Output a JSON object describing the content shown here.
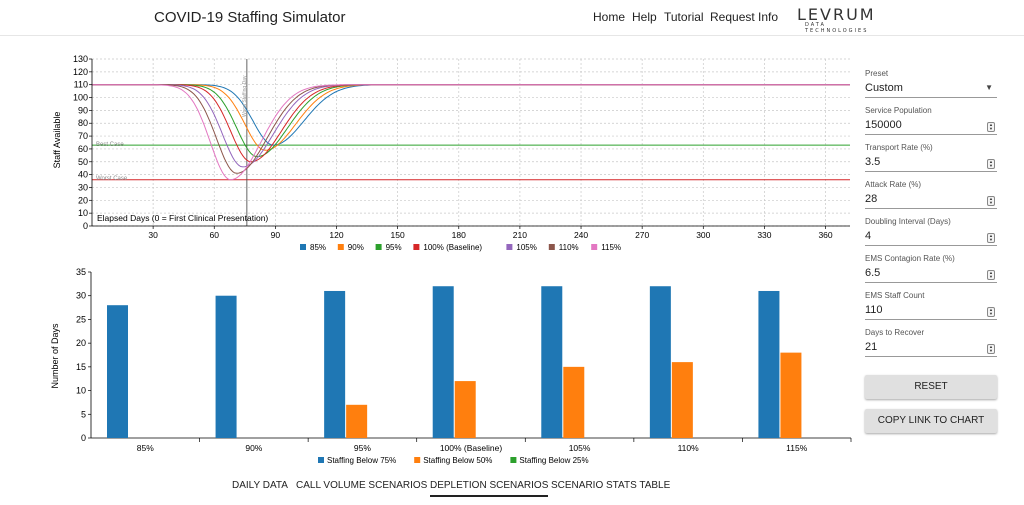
{
  "header": {
    "title": "COVID-19 Staffing Simulator",
    "nav": [
      "Home",
      "Help",
      "Tutorial",
      "Request Info"
    ],
    "logo_main": "LEVRUM",
    "logo_sub": "DATA TECHNOLOGIES"
  },
  "line_chart": {
    "ylabel": "Staff Available",
    "xlabel": "Elapsed Days (0 = First Clinical Presentation)",
    "x_ticks": [
      30,
      60,
      90,
      120,
      150,
      180,
      210,
      240,
      270,
      300,
      330,
      360
    ],
    "y_ticks": [
      0,
      10,
      20,
      30,
      40,
      50,
      60,
      70,
      80,
      90,
      100,
      110,
      120,
      130
    ],
    "best_case_label": "Best Case",
    "worst_case_label": "Worst Case",
    "worst_staffing_label": "Worst Staffing Day"
  },
  "bar_chart": {
    "ylabel": "Number of Days",
    "y_ticks": [
      0,
      5,
      10,
      15,
      20,
      25,
      30,
      35
    ]
  },
  "panel": {
    "preset_label": "Preset",
    "preset_value": "Custom",
    "fields": [
      {
        "label": "Service Population",
        "value": "150000"
      },
      {
        "label": "Transport Rate (%)",
        "value": "3.5"
      },
      {
        "label": "Attack Rate (%)",
        "value": "28"
      },
      {
        "label": "Doubling Interval (Days)",
        "value": "4"
      },
      {
        "label": "EMS Contagion Rate (%)",
        "value": "6.5"
      },
      {
        "label": "EMS Staff Count",
        "value": "110"
      },
      {
        "label": "Days to Recover",
        "value": "21"
      }
    ],
    "reset_label": "RESET",
    "copy_label": "COPY LINK TO CHART"
  },
  "tabs": [
    "DAILY DATA",
    "CALL VOLUME SCENARIOS",
    "DEPLETION SCENARIOS",
    "SCENARIO STATS TABLE"
  ],
  "chart_data": [
    {
      "type": "line",
      "ylabel": "Staff Available",
      "xlabel": "Elapsed Days (0 = First Clinical Presentation)",
      "xlim": [
        0,
        372
      ],
      "ylim": [
        0,
        130
      ],
      "grid": true,
      "legend_position": "bottom",
      "baseline_staff": 110,
      "reference_lines": [
        {
          "name": "Best Case",
          "y": 63,
          "color": "#2ca02c"
        },
        {
          "name": "Worst Case",
          "y": 36,
          "color": "#d62728"
        },
        {
          "name": "Worst Staffing Day",
          "x": 76,
          "color": "#555555",
          "orientation": "vertical"
        }
      ],
      "series": [
        {
          "name": "85%",
          "color": "#1f77b4",
          "min_day": 89,
          "min_staff": 63
        },
        {
          "name": "90%",
          "color": "#ff7f0e",
          "min_day": 85,
          "min_staff": 59
        },
        {
          "name": "95%",
          "color": "#2ca02c",
          "min_day": 81,
          "min_staff": 54
        },
        {
          "name": "100% (Baseline)",
          "color": "#d62728",
          "min_day": 78,
          "min_staff": 50
        },
        {
          "name": "105%",
          "color": "#9467bd",
          "min_day": 74,
          "min_staff": 46
        },
        {
          "name": "110%",
          "color": "#8c564b",
          "min_day": 71,
          "min_staff": 41
        },
        {
          "name": "115%",
          "color": "#e377c2",
          "min_day": 68,
          "min_staff": 36
        }
      ]
    },
    {
      "type": "bar",
      "ylabel": "Number of Days",
      "ylim": [
        0,
        35
      ],
      "categories": [
        "85%",
        "90%",
        "95%",
        "100% (Baseline)",
        "105%",
        "110%",
        "115%"
      ],
      "legend_position": "bottom",
      "series": [
        {
          "name": "Staffing Below 75%",
          "color": "#1f77b4",
          "values": [
            28,
            30,
            31,
            32,
            32,
            32,
            31
          ]
        },
        {
          "name": "Staffing Below 50%",
          "color": "#ff7f0e",
          "values": [
            0,
            0,
            7,
            12,
            15,
            16,
            18
          ]
        },
        {
          "name": "Staffing Below 25%",
          "color": "#2ca02c",
          "values": [
            0,
            0,
            0,
            0,
            0,
            0,
            0
          ]
        }
      ]
    }
  ]
}
